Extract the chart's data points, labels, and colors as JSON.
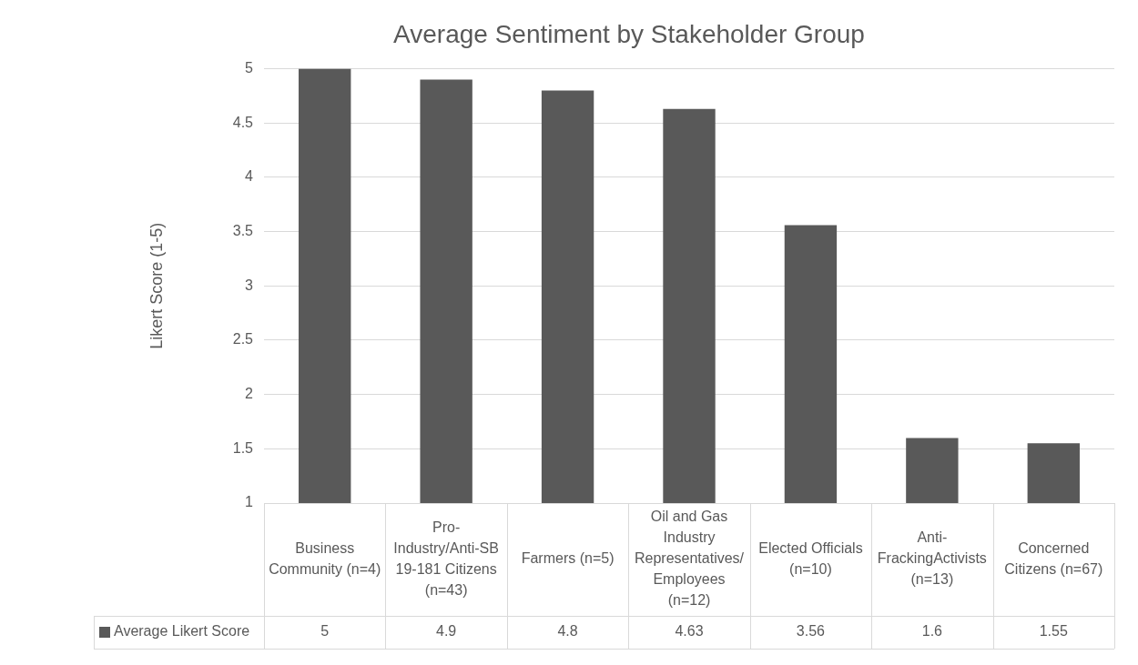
{
  "chart_data": {
    "type": "bar",
    "title": "Average Sentiment by Stakeholder Group",
    "ylabel": "Likert Score (1-5)",
    "categories": [
      "Business Community (n=4)",
      "Pro-Industry/Anti-SB 19-181 Citizens (n=43)",
      "Farmers (n=5)",
      "Oil and Gas Industry Representatives/Employees (n=12)",
      "Elected Officials (n=10)",
      "Anti-FrackingActivists (n=13)",
      "Concerned Citizens (n=67)"
    ],
    "series": [
      {
        "name": "Average Likert Score",
        "color": "#595959",
        "values": [
          5,
          4.9,
          4.8,
          4.63,
          3.56,
          1.6,
          1.55
        ]
      }
    ],
    "ylim": [
      1,
      5
    ],
    "yticks": [
      1,
      1.5,
      2,
      2.5,
      3,
      3.5,
      4,
      4.5,
      5
    ],
    "grid": "y",
    "legend": "bottom",
    "data_labels": true
  }
}
